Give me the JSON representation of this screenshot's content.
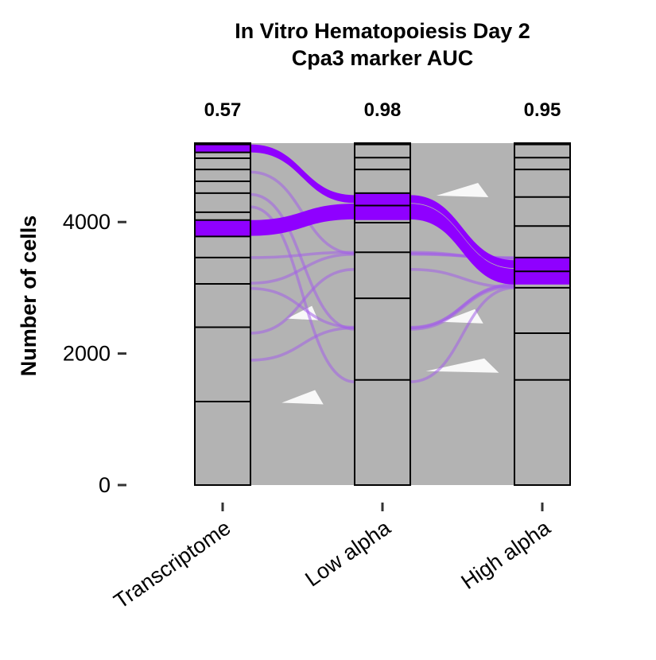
{
  "chart_data": {
    "type": "alluvial",
    "title": "In Vitro Hematopoiesis Day 2",
    "subtitle": "Cpa3 marker AUC",
    "xlabel": "",
    "ylabel": "Number of cells",
    "ylim": [
      0,
      5200
    ],
    "yticks": [
      0,
      2000,
      4000
    ],
    "categories": [
      "Transcriptome",
      "Low alpha",
      "High alpha"
    ],
    "auc": [
      "0.57",
      "0.98",
      "0.95"
    ],
    "strata": [
      [
        0,
        1270,
        2400,
        3060,
        3460,
        3780,
        4030,
        4150,
        4440,
        4620,
        4800,
        4970,
        5060,
        5180,
        5200
      ],
      [
        0,
        1600,
        2840,
        3540,
        3990,
        4250,
        4440,
        4800,
        4980,
        5180,
        5200
      ],
      [
        0,
        1600,
        2310,
        3000,
        3250,
        3460,
        3940,
        4380,
        4800,
        4980,
        5180,
        5200
      ]
    ],
    "highlight_strata": [
      [
        [
          3780,
          4030
        ],
        [
          5060,
          5180
        ]
      ],
      [
        [
          4030,
          4440
        ]
      ],
      [
        [
          3050,
          3470
        ]
      ]
    ],
    "highlight_flows": [
      {
        "from": [
          3790,
          4030
        ],
        "mid": [
          4040,
          4280
        ],
        "to": [
          3050,
          3290
        ]
      },
      {
        "from": [
          5060,
          5180
        ],
        "mid": [
          4290,
          4410
        ],
        "to": [
          3300,
          3420
        ]
      }
    ],
    "thin_flows": [
      [
        4760,
        3520,
        3450
      ],
      [
        4420,
        2370,
        3020
      ],
      [
        4230,
        1570,
        3000
      ],
      [
        3460,
        3540,
        3440
      ],
      [
        3070,
        3510,
        3460
      ],
      [
        2990,
        2400,
        3040
      ],
      [
        2310,
        3280,
        3010
      ],
      [
        1900,
        2390,
        3050
      ]
    ],
    "gaps": [
      {
        "pos": 0,
        "y": 1300,
        "w": 0.2
      },
      {
        "pos": 0,
        "y": 2580,
        "w": 0.15
      },
      {
        "pos": 1,
        "y": 1780,
        "w": 0.35
      },
      {
        "pos": 1,
        "y": 2530,
        "w": 0.2
      },
      {
        "pos": 1,
        "y": 4450,
        "w": 0.25
      }
    ],
    "colors": {
      "stratum_fill": "#b3b3b3",
      "flow_fill": "#b3b3b3",
      "highlight": "#8f00ff",
      "thin_flow": "#a35ee8",
      "stroke": "#000000"
    }
  }
}
